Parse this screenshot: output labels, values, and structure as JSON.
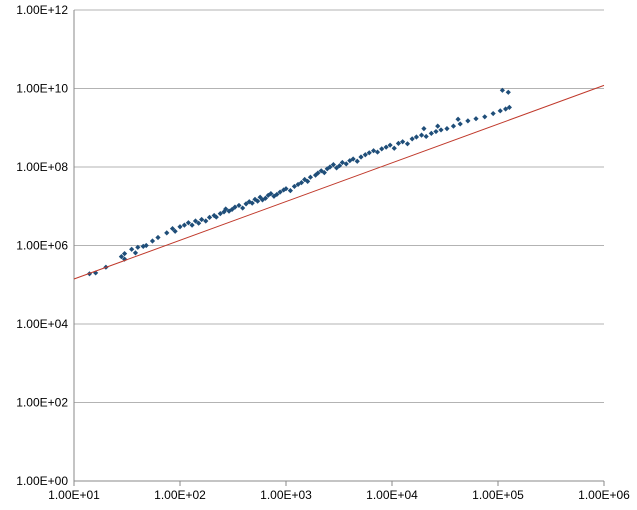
{
  "chart_data": {
    "type": "scatter",
    "title": "",
    "xlabel": "",
    "ylabel": "",
    "x_scale": "log",
    "y_scale": "log",
    "xlim": [
      10,
      1000000
    ],
    "ylim": [
      1,
      1000000000000
    ],
    "x_ticks": [
      {
        "value": 10,
        "label": "1.00E+01"
      },
      {
        "value": 100,
        "label": "1.00E+02"
      },
      {
        "value": 1000,
        "label": "1.00E+03"
      },
      {
        "value": 10000,
        "label": "1.00E+04"
      },
      {
        "value": 100000,
        "label": "1.00E+05"
      },
      {
        "value": 1000000,
        "label": "1.00E+06"
      }
    ],
    "y_ticks": [
      {
        "value": 1,
        "label": "1.00E+00"
      },
      {
        "value": 100,
        "label": "1.00E+02"
      },
      {
        "value": 10000,
        "label": "1.00E+04"
      },
      {
        "value": 1000000,
        "label": "1.00E+06"
      },
      {
        "value": 100000000,
        "label": "1.00E+08"
      },
      {
        "value": 10000000000,
        "label": "1.00E+10"
      },
      {
        "value": 1000000000000,
        "label": "1.00E+12"
      }
    ],
    "grid": "horizontal",
    "legend": "none",
    "marker_color": "#1f4e79",
    "trendline": {
      "color": "#c0392b",
      "points": [
        [
          10,
          140000
        ],
        [
          1000000,
          12000000000
        ]
      ]
    },
    "points": [
      [
        14,
        190000
      ],
      [
        16,
        200000
      ],
      [
        20,
        280000
      ],
      [
        28,
        520000
      ],
      [
        30,
        450000
      ],
      [
        30,
        620000
      ],
      [
        35,
        800000
      ],
      [
        38,
        650000
      ],
      [
        40,
        900000
      ],
      [
        45,
        950000
      ],
      [
        48,
        1000000
      ],
      [
        55,
        1300000
      ],
      [
        62,
        1600000
      ],
      [
        75,
        2100000
      ],
      [
        85,
        2700000
      ],
      [
        90,
        2300000
      ],
      [
        100,
        3000000
      ],
      [
        110,
        3300000
      ],
      [
        120,
        3800000
      ],
      [
        130,
        3300000
      ],
      [
        140,
        4200000
      ],
      [
        150,
        3700000
      ],
      [
        160,
        4600000
      ],
      [
        175,
        4200000
      ],
      [
        190,
        5200000
      ],
      [
        210,
        5800000
      ],
      [
        220,
        5300000
      ],
      [
        240,
        6500000
      ],
      [
        260,
        7200000
      ],
      [
        270,
        8500000
      ],
      [
        290,
        7500000
      ],
      [
        310,
        8300000
      ],
      [
        330,
        9500000
      ],
      [
        360,
        10500000
      ],
      [
        390,
        9000000
      ],
      [
        420,
        11500000
      ],
      [
        450,
        13000000
      ],
      [
        480,
        12000000
      ],
      [
        510,
        15000000
      ],
      [
        540,
        13500000
      ],
      [
        570,
        17000000
      ],
      [
        600,
        14500000
      ],
      [
        640,
        16000000
      ],
      [
        680,
        19000000
      ],
      [
        720,
        21000000
      ],
      [
        770,
        18000000
      ],
      [
        820,
        20000000
      ],
      [
        880,
        23000000
      ],
      [
        950,
        26000000
      ],
      [
        1000,
        28000000
      ],
      [
        1100,
        25000000
      ],
      [
        1200,
        32000000
      ],
      [
        1300,
        36000000
      ],
      [
        1400,
        40000000
      ],
      [
        1500,
        48000000
      ],
      [
        1600,
        43000000
      ],
      [
        1700,
        55000000
      ],
      [
        1900,
        62000000
      ],
      [
        2000,
        70000000
      ],
      [
        2150,
        80000000
      ],
      [
        2300,
        72000000
      ],
      [
        2450,
        90000000
      ],
      [
        2600,
        100000000
      ],
      [
        2800,
        115000000
      ],
      [
        3000,
        95000000
      ],
      [
        3200,
        108000000
      ],
      [
        3400,
        130000000
      ],
      [
        3700,
        120000000
      ],
      [
        4000,
        145000000
      ],
      [
        4300,
        160000000
      ],
      [
        4700,
        140000000
      ],
      [
        5100,
        180000000
      ],
      [
        5600,
        205000000
      ],
      [
        6100,
        230000000
      ],
      [
        6700,
        260000000
      ],
      [
        7300,
        240000000
      ],
      [
        8000,
        290000000
      ],
      [
        8800,
        320000000
      ],
      [
        9600,
        360000000
      ],
      [
        10500,
        300000000
      ],
      [
        11500,
        400000000
      ],
      [
        12600,
        440000000
      ],
      [
        14000,
        390000000
      ],
      [
        15500,
        520000000
      ],
      [
        17000,
        580000000
      ],
      [
        19000,
        650000000
      ],
      [
        21000,
        600000000
      ],
      [
        23500,
        720000000
      ],
      [
        26000,
        800000000
      ],
      [
        29000,
        880000000
      ],
      [
        33000,
        950000000
      ],
      [
        38000,
        1100000000
      ],
      [
        44000,
        1250000000
      ],
      [
        52000,
        1500000000
      ],
      [
        62000,
        1700000000
      ],
      [
        75000,
        1900000000
      ],
      [
        90000,
        2300000000
      ],
      [
        105000,
        2700000000
      ],
      [
        118000,
        3000000000
      ],
      [
        128000,
        3300000000
      ],
      [
        20000,
        950000000
      ],
      [
        27000,
        1100000000
      ],
      [
        42000,
        1650000000
      ],
      [
        110000,
        9000000000
      ],
      [
        125000,
        8000000000
      ]
    ]
  }
}
